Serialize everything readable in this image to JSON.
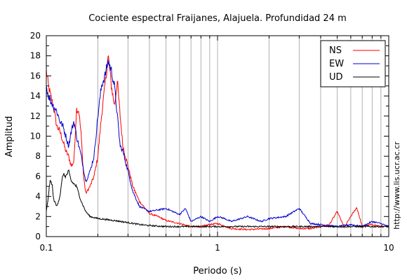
{
  "chart_data": {
    "type": "line",
    "title": "Cociente espectral Fraijanes, Alajuela. Profundidad 24 m",
    "xlabel": "Periodo (s)",
    "ylabel": "Amplitud",
    "xscale": "log",
    "xlim": [
      0.1,
      10
    ],
    "ylim": [
      0,
      20
    ],
    "x_ticks": [
      0.1,
      1,
      10
    ],
    "x_tick_labels": [
      "0.1",
      "1",
      "10"
    ],
    "y_ticks": [
      0,
      2,
      4,
      6,
      8,
      10,
      12,
      14,
      16,
      18,
      20
    ],
    "y_tick_labels": [
      "0",
      "2",
      "4",
      "6",
      "8",
      "10",
      "12",
      "14",
      "16",
      "18",
      "20"
    ],
    "grid": "vertical",
    "legend_position": "top-right",
    "side_note": "http://www.lis.ucr.ac.cr",
    "series": [
      {
        "name": "NS",
        "color": "#ff0000",
        "points": [
          [
            0.1,
            16.5
          ],
          [
            0.103,
            15.0
          ],
          [
            0.106,
            14.0
          ],
          [
            0.11,
            13.0
          ],
          [
            0.115,
            11.0
          ],
          [
            0.12,
            10.5
          ],
          [
            0.125,
            9.5
          ],
          [
            0.13,
            8.5
          ],
          [
            0.135,
            8.0
          ],
          [
            0.14,
            7.0
          ],
          [
            0.145,
            7.5
          ],
          [
            0.15,
            12.7
          ],
          [
            0.155,
            12.5
          ],
          [
            0.16,
            10.0
          ],
          [
            0.165,
            6.0
          ],
          [
            0.17,
            4.3
          ],
          [
            0.18,
            5.0
          ],
          [
            0.19,
            6.0
          ],
          [
            0.2,
            8.0
          ],
          [
            0.21,
            12.0
          ],
          [
            0.22,
            15.0
          ],
          [
            0.23,
            18.0
          ],
          [
            0.24,
            15.0
          ],
          [
            0.25,
            13.0
          ],
          [
            0.26,
            15.5
          ],
          [
            0.27,
            12.0
          ],
          [
            0.28,
            9.0
          ],
          [
            0.3,
            7.0
          ],
          [
            0.32,
            5.0
          ],
          [
            0.35,
            3.5
          ],
          [
            0.4,
            2.3
          ],
          [
            0.45,
            2.0
          ],
          [
            0.5,
            1.6
          ],
          [
            0.6,
            1.3
          ],
          [
            0.7,
            1.0
          ],
          [
            0.8,
            1.0
          ],
          [
            0.9,
            1.2
          ],
          [
            1.0,
            1.3
          ],
          [
            1.2,
            0.8
          ],
          [
            1.5,
            0.7
          ],
          [
            2.0,
            0.8
          ],
          [
            2.5,
            1.0
          ],
          [
            3.0,
            0.8
          ],
          [
            3.5,
            0.8
          ],
          [
            4.0,
            1.0
          ],
          [
            4.5,
            1.2
          ],
          [
            5.0,
            2.5
          ],
          [
            5.5,
            0.9
          ],
          [
            6.0,
            2.0
          ],
          [
            6.5,
            2.9
          ],
          [
            7.0,
            1.0
          ],
          [
            8.0,
            1.2
          ],
          [
            9.0,
            1.0
          ],
          [
            10.0,
            1.0
          ]
        ]
      },
      {
        "name": "EW",
        "color": "#0000cc",
        "points": [
          [
            0.1,
            15.0
          ],
          [
            0.103,
            14.0
          ],
          [
            0.106,
            13.5
          ],
          [
            0.11,
            13.0
          ],
          [
            0.115,
            12.5
          ],
          [
            0.12,
            11.5
          ],
          [
            0.125,
            11.0
          ],
          [
            0.13,
            10.0
          ],
          [
            0.135,
            9.0
          ],
          [
            0.14,
            10.5
          ],
          [
            0.145,
            11.5
          ],
          [
            0.15,
            10.0
          ],
          [
            0.155,
            9.0
          ],
          [
            0.16,
            8.0
          ],
          [
            0.17,
            5.5
          ],
          [
            0.18,
            6.5
          ],
          [
            0.19,
            8.0
          ],
          [
            0.2,
            12.0
          ],
          [
            0.21,
            15.0
          ],
          [
            0.22,
            16.0
          ],
          [
            0.23,
            17.5
          ],
          [
            0.24,
            16.5
          ],
          [
            0.25,
            15.0
          ],
          [
            0.26,
            12.0
          ],
          [
            0.27,
            9.0
          ],
          [
            0.28,
            8.5
          ],
          [
            0.3,
            6.5
          ],
          [
            0.32,
            4.5
          ],
          [
            0.35,
            3.0
          ],
          [
            0.4,
            2.5
          ],
          [
            0.5,
            2.8
          ],
          [
            0.6,
            2.2
          ],
          [
            0.65,
            2.8
          ],
          [
            0.7,
            1.5
          ],
          [
            0.8,
            2.0
          ],
          [
            0.9,
            1.5
          ],
          [
            1.0,
            2.0
          ],
          [
            1.1,
            1.8
          ],
          [
            1.2,
            1.5
          ],
          [
            1.5,
            2.0
          ],
          [
            1.8,
            1.5
          ],
          [
            2.0,
            1.8
          ],
          [
            2.5,
            2.0
          ],
          [
            3.0,
            2.8
          ],
          [
            3.5,
            1.3
          ],
          [
            4.0,
            1.2
          ],
          [
            5.0,
            1.0
          ],
          [
            6.0,
            1.2
          ],
          [
            7.0,
            1.0
          ],
          [
            8.0,
            1.5
          ],
          [
            9.0,
            1.3
          ],
          [
            10.0,
            1.0
          ]
        ]
      },
      {
        "name": "UD",
        "color": "#000000",
        "points": [
          [
            0.1,
            2.5
          ],
          [
            0.102,
            3.5
          ],
          [
            0.105,
            5.5
          ],
          [
            0.108,
            5.3
          ],
          [
            0.11,
            3.8
          ],
          [
            0.115,
            3.0
          ],
          [
            0.12,
            4.0
          ],
          [
            0.125,
            6.2
          ],
          [
            0.13,
            6.0
          ],
          [
            0.135,
            6.5
          ],
          [
            0.14,
            5.5
          ],
          [
            0.15,
            5.0
          ],
          [
            0.16,
            3.5
          ],
          [
            0.17,
            2.5
          ],
          [
            0.18,
            2.0
          ],
          [
            0.2,
            1.8
          ],
          [
            0.25,
            1.6
          ],
          [
            0.3,
            1.4
          ],
          [
            0.35,
            1.2
          ],
          [
            0.4,
            1.1
          ],
          [
            0.5,
            1.0
          ],
          [
            0.7,
            1.0
          ],
          [
            1.0,
            1.0
          ],
          [
            2.0,
            1.0
          ],
          [
            5.0,
            1.0
          ],
          [
            10.0,
            1.0
          ]
        ]
      }
    ]
  }
}
